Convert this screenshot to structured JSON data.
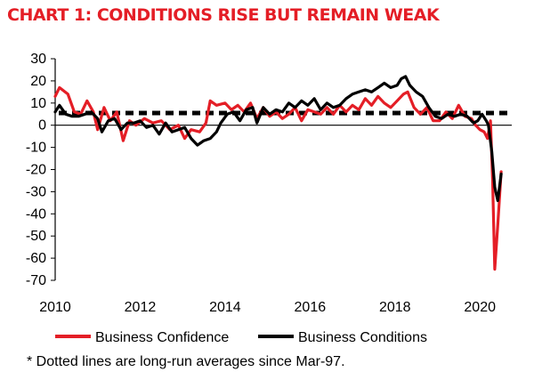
{
  "chart_data": {
    "type": "line",
    "title": "CHART 1: CONDITIONS RISE BUT REMAIN WEAK",
    "xlabel": "",
    "ylabel": "",
    "xlim": [
      2010,
      2020.75
    ],
    "ylim": [
      -70,
      30
    ],
    "x_ticks": [
      2010,
      2012,
      2014,
      2016,
      2018,
      2020
    ],
    "y_ticks": [
      30,
      20,
      10,
      0,
      -10,
      -20,
      -30,
      -40,
      -50,
      -60,
      -70
    ],
    "series": [
      {
        "name": "Business Confidence",
        "color": "#e41e26",
        "points": [
          [
            2010.0,
            13
          ],
          [
            2010.1,
            17
          ],
          [
            2010.3,
            14
          ],
          [
            2010.45,
            6
          ],
          [
            2010.6,
            5
          ],
          [
            2010.75,
            11
          ],
          [
            2010.9,
            6
          ],
          [
            2011.0,
            -2
          ],
          [
            2011.15,
            8
          ],
          [
            2011.3,
            2
          ],
          [
            2011.45,
            6
          ],
          [
            2011.6,
            -7
          ],
          [
            2011.75,
            2
          ],
          [
            2011.9,
            0
          ],
          [
            2012.1,
            3
          ],
          [
            2012.3,
            1
          ],
          [
            2012.5,
            2
          ],
          [
            2012.7,
            -2
          ],
          [
            2012.9,
            0
          ],
          [
            2013.05,
            -6
          ],
          [
            2013.2,
            -2
          ],
          [
            2013.4,
            -3
          ],
          [
            2013.55,
            1
          ],
          [
            2013.65,
            11
          ],
          [
            2013.8,
            9
          ],
          [
            2014.0,
            10
          ],
          [
            2014.15,
            7
          ],
          [
            2014.3,
            9
          ],
          [
            2014.45,
            6
          ],
          [
            2014.6,
            10
          ],
          [
            2014.75,
            3
          ],
          [
            2014.9,
            8
          ],
          [
            2015.05,
            4
          ],
          [
            2015.2,
            6
          ],
          [
            2015.35,
            3
          ],
          [
            2015.5,
            5
          ],
          [
            2015.65,
            8
          ],
          [
            2015.8,
            2
          ],
          [
            2015.95,
            7
          ],
          [
            2016.1,
            6
          ],
          [
            2016.25,
            5
          ],
          [
            2016.4,
            8
          ],
          [
            2016.55,
            5
          ],
          [
            2016.7,
            9
          ],
          [
            2016.85,
            6
          ],
          [
            2017.0,
            9
          ],
          [
            2017.15,
            7
          ],
          [
            2017.3,
            12
          ],
          [
            2017.45,
            9
          ],
          [
            2017.6,
            13
          ],
          [
            2017.75,
            10
          ],
          [
            2017.9,
            8
          ],
          [
            2018.05,
            11
          ],
          [
            2018.2,
            14
          ],
          [
            2018.3,
            15
          ],
          [
            2018.45,
            8
          ],
          [
            2018.6,
            5
          ],
          [
            2018.75,
            8
          ],
          [
            2018.9,
            2
          ],
          [
            2019.05,
            2
          ],
          [
            2019.2,
            6
          ],
          [
            2019.35,
            3
          ],
          [
            2019.5,
            9
          ],
          [
            2019.65,
            4
          ],
          [
            2019.8,
            3
          ],
          [
            2019.9,
            0
          ],
          [
            2020.0,
            -2
          ],
          [
            2020.1,
            -3
          ],
          [
            2020.18,
            -6
          ],
          [
            2020.25,
            2
          ],
          [
            2020.3,
            -25
          ],
          [
            2020.35,
            -65
          ],
          [
            2020.42,
            -45
          ],
          [
            2020.5,
            -21
          ]
        ]
      },
      {
        "name": "Business Conditions",
        "color": "#000000",
        "points": [
          [
            2010.0,
            6
          ],
          [
            2010.1,
            9
          ],
          [
            2010.25,
            5
          ],
          [
            2010.4,
            4
          ],
          [
            2010.55,
            4
          ],
          [
            2010.7,
            5
          ],
          [
            2010.85,
            6
          ],
          [
            2011.0,
            3
          ],
          [
            2011.1,
            -3
          ],
          [
            2011.25,
            2
          ],
          [
            2011.4,
            3
          ],
          [
            2011.55,
            -2
          ],
          [
            2011.7,
            1
          ],
          [
            2011.85,
            1
          ],
          [
            2012.0,
            2
          ],
          [
            2012.15,
            -1
          ],
          [
            2012.3,
            0
          ],
          [
            2012.45,
            -4
          ],
          [
            2012.6,
            1
          ],
          [
            2012.75,
            -3
          ],
          [
            2012.9,
            -2
          ],
          [
            2013.05,
            -1
          ],
          [
            2013.2,
            -6
          ],
          [
            2013.35,
            -9
          ],
          [
            2013.5,
            -7
          ],
          [
            2013.65,
            -6
          ],
          [
            2013.8,
            -3
          ],
          [
            2013.9,
            1
          ],
          [
            2014.05,
            5
          ],
          [
            2014.2,
            6
          ],
          [
            2014.35,
            2
          ],
          [
            2014.5,
            7
          ],
          [
            2014.65,
            8
          ],
          [
            2014.75,
            1
          ],
          [
            2014.9,
            8
          ],
          [
            2015.05,
            5
          ],
          [
            2015.2,
            7
          ],
          [
            2015.35,
            6
          ],
          [
            2015.5,
            10
          ],
          [
            2015.65,
            8
          ],
          [
            2015.8,
            11
          ],
          [
            2015.95,
            9
          ],
          [
            2016.1,
            12
          ],
          [
            2016.25,
            7
          ],
          [
            2016.4,
            10
          ],
          [
            2016.55,
            8
          ],
          [
            2016.7,
            9
          ],
          [
            2016.85,
            12
          ],
          [
            2017.0,
            14
          ],
          [
            2017.15,
            15
          ],
          [
            2017.3,
            16
          ],
          [
            2017.45,
            15
          ],
          [
            2017.6,
            17
          ],
          [
            2017.75,
            19
          ],
          [
            2017.9,
            17
          ],
          [
            2018.05,
            18
          ],
          [
            2018.15,
            21
          ],
          [
            2018.25,
            22
          ],
          [
            2018.35,
            18
          ],
          [
            2018.5,
            15
          ],
          [
            2018.65,
            13
          ],
          [
            2018.8,
            8
          ],
          [
            2018.95,
            4
          ],
          [
            2019.1,
            3
          ],
          [
            2019.25,
            5
          ],
          [
            2019.4,
            4
          ],
          [
            2019.55,
            5
          ],
          [
            2019.7,
            4
          ],
          [
            2019.85,
            1
          ],
          [
            2019.95,
            2
          ],
          [
            2020.05,
            5
          ],
          [
            2020.15,
            2
          ],
          [
            2020.2,
            0
          ],
          [
            2020.28,
            -12
          ],
          [
            2020.35,
            -28
          ],
          [
            2020.42,
            -34
          ],
          [
            2020.5,
            -22
          ]
        ]
      }
    ],
    "reference_lines": [
      {
        "series": "Business Confidence",
        "value": 6,
        "style": "dashed"
      },
      {
        "series": "Business Conditions",
        "value": 5,
        "style": "dashed"
      }
    ],
    "legend": [
      "Business Confidence",
      "Business Conditions"
    ],
    "legend_position": "bottom",
    "footnote": "* Dotted lines are long-run averages since Mar-97."
  }
}
